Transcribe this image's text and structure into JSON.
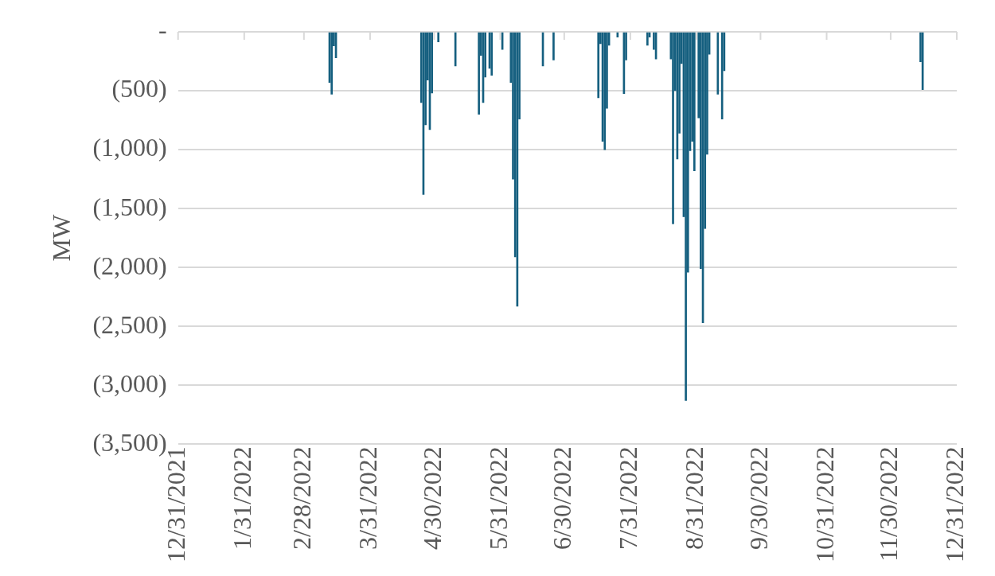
{
  "chart_data": {
    "type": "bar",
    "ylabel": "MW",
    "xlim": [
      "2021-12-31",
      "2022-12-31"
    ],
    "xticks": [
      {
        "value": "2021-12-31",
        "label": "12/31/2021"
      },
      {
        "value": "2022-01-31",
        "label": "1/31/2022"
      },
      {
        "value": "2022-02-28",
        "label": "2/28/2022"
      },
      {
        "value": "2022-03-31",
        "label": "3/31/2022"
      },
      {
        "value": "2022-04-30",
        "label": "4/30/2022"
      },
      {
        "value": "2022-05-31",
        "label": "5/31/2022"
      },
      {
        "value": "2022-06-30",
        "label": "6/30/2022"
      },
      {
        "value": "2022-07-31",
        "label": "7/31/2022"
      },
      {
        "value": "2022-08-31",
        "label": "8/31/2022"
      },
      {
        "value": "2022-09-30",
        "label": "9/30/2022"
      },
      {
        "value": "2022-10-31",
        "label": "10/31/2022"
      },
      {
        "value": "2022-11-30",
        "label": "11/30/2022"
      },
      {
        "value": "2022-12-31",
        "label": "12/31/2022"
      }
    ],
    "ylim": [
      -3500,
      0
    ],
    "yticks": [
      {
        "value": 0,
        "label": "-"
      },
      {
        "value": -500,
        "label": "(500)"
      },
      {
        "value": -1000,
        "label": "(1,000)"
      },
      {
        "value": -1500,
        "label": "(1,500)"
      },
      {
        "value": -2000,
        "label": "(2,000)"
      },
      {
        "value": -2500,
        "label": "(2,500)"
      },
      {
        "value": -3000,
        "label": "(3,000)"
      },
      {
        "value": -3500,
        "label": "(3,500)"
      }
    ],
    "grid": "y",
    "legend": false,
    "x": [
      "2022-03-12",
      "2022-03-13",
      "2022-03-14",
      "2022-03-15",
      "2022-04-24",
      "2022-04-25",
      "2022-04-26",
      "2022-04-27",
      "2022-04-28",
      "2022-04-29",
      "2022-05-02",
      "2022-05-10",
      "2022-05-21",
      "2022-05-22",
      "2022-05-23",
      "2022-05-24",
      "2022-05-26",
      "2022-05-27",
      "2022-06-01",
      "2022-06-05",
      "2022-06-06",
      "2022-06-07",
      "2022-06-08",
      "2022-06-09",
      "2022-06-20",
      "2022-06-25",
      "2022-07-16",
      "2022-07-17",
      "2022-07-18",
      "2022-07-19",
      "2022-07-20",
      "2022-07-21",
      "2022-07-25",
      "2022-07-28",
      "2022-07-29",
      "2022-08-08",
      "2022-08-09",
      "2022-08-11",
      "2022-08-12",
      "2022-08-19",
      "2022-08-20",
      "2022-08-21",
      "2022-08-22",
      "2022-08-23",
      "2022-08-24",
      "2022-08-25",
      "2022-08-26",
      "2022-08-27",
      "2022-08-28",
      "2022-08-29",
      "2022-08-30",
      "2022-08-31",
      "2022-09-01",
      "2022-09-02",
      "2022-09-03",
      "2022-09-04",
      "2022-09-05",
      "2022-09-06",
      "2022-09-10",
      "2022-09-12",
      "2022-09-13",
      "2022-12-14",
      "2022-12-15"
    ],
    "series": [
      {
        "color": "#155f7f",
        "values": [
          -430,
          -530,
          -120,
          -220,
          -600,
          -1380,
          -790,
          -410,
          -830,
          -520,
          -85,
          -290,
          -700,
          -200,
          -600,
          -385,
          -310,
          -370,
          -150,
          -430,
          -1250,
          -1910,
          -2330,
          -740,
          -290,
          -240,
          -560,
          -100,
          -930,
          -1000,
          -650,
          -115,
          -45,
          -525,
          -240,
          -115,
          -45,
          -150,
          -230,
          -230,
          -1630,
          -500,
          -1080,
          -860,
          -270,
          -1570,
          -3130,
          -2040,
          -1010,
          -930,
          -1180,
          null,
          -730,
          -2010,
          -2470,
          -1670,
          -1040,
          -190,
          -530,
          -740,
          -330,
          -255,
          -490
        ]
      }
    ]
  }
}
